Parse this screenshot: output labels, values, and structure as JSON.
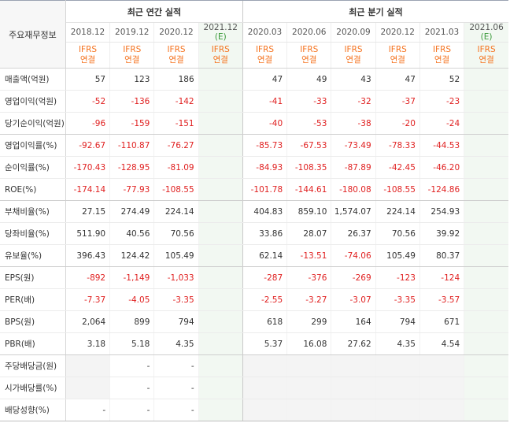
{
  "header": {
    "row_label": "주요재무정보",
    "annual_title": "최근 연간 실적",
    "quarterly_title": "최근 분기 실적",
    "estimate_mark": "(E)",
    "periods": [
      {
        "label": "2018.12",
        "est": false
      },
      {
        "label": "2019.12",
        "est": false
      },
      {
        "label": "2020.12",
        "est": false
      },
      {
        "label": "2021.12",
        "est": true
      },
      {
        "label": "2020.03",
        "est": false
      },
      {
        "label": "2020.06",
        "est": false
      },
      {
        "label": "2020.09",
        "est": false
      },
      {
        "label": "2020.12",
        "est": false
      },
      {
        "label": "2021.03",
        "est": false
      },
      {
        "label": "2021.06",
        "est": true
      }
    ],
    "basis_line1": "IFRS",
    "basis_line2": "연결"
  },
  "rows": [
    {
      "label": "매출액(억원)",
      "values": [
        "57",
        "123",
        "186",
        "",
        "47",
        "49",
        "43",
        "47",
        "52",
        ""
      ]
    },
    {
      "label": "영업이익(억원)",
      "values": [
        "-52",
        "-136",
        "-142",
        "",
        "-41",
        "-33",
        "-32",
        "-37",
        "-23",
        ""
      ]
    },
    {
      "label": "당기순이익(억원)",
      "values": [
        "-96",
        "-159",
        "-151",
        "",
        "-40",
        "-53",
        "-38",
        "-20",
        "-24",
        ""
      ]
    },
    {
      "label": "영업이익률(%)",
      "values": [
        "-92.67",
        "-110.87",
        "-76.27",
        "",
        "-85.73",
        "-67.53",
        "-73.49",
        "-78.33",
        "-44.53",
        ""
      ]
    },
    {
      "label": "순이익률(%)",
      "values": [
        "-170.43",
        "-128.95",
        "-81.09",
        "",
        "-84.93",
        "-108.35",
        "-87.89",
        "-42.45",
        "-46.20",
        ""
      ]
    },
    {
      "label": "ROE(%)",
      "values": [
        "-174.14",
        "-77.93",
        "-108.55",
        "",
        "-101.78",
        "-144.61",
        "-180.08",
        "-108.55",
        "-124.86",
        ""
      ]
    },
    {
      "label": "부채비율(%)",
      "values": [
        "27.15",
        "274.49",
        "224.14",
        "",
        "404.83",
        "859.10",
        "1,574.07",
        "224.14",
        "254.93",
        ""
      ]
    },
    {
      "label": "당좌비율(%)",
      "values": [
        "511.90",
        "40.56",
        "70.56",
        "",
        "33.86",
        "28.07",
        "26.37",
        "70.56",
        "39.92",
        ""
      ]
    },
    {
      "label": "유보율(%)",
      "values": [
        "396.43",
        "124.42",
        "105.49",
        "",
        "62.14",
        "-13.51",
        "-74.06",
        "105.49",
        "80.37",
        ""
      ]
    },
    {
      "label": "EPS(원)",
      "values": [
        "-892",
        "-1,149",
        "-1,033",
        "",
        "-287",
        "-376",
        "-269",
        "-123",
        "-124",
        ""
      ]
    },
    {
      "label": "PER(배)",
      "values": [
        "-7.37",
        "-4.05",
        "-3.35",
        "",
        "-2.55",
        "-3.27",
        "-3.07",
        "-3.35",
        "-3.57",
        ""
      ]
    },
    {
      "label": "BPS(원)",
      "values": [
        "2,064",
        "899",
        "794",
        "",
        "618",
        "299",
        "164",
        "794",
        "671",
        ""
      ]
    },
    {
      "label": "PBR(배)",
      "values": [
        "3.18",
        "5.18",
        "4.35",
        "",
        "5.37",
        "16.08",
        "27.62",
        "4.35",
        "4.54",
        ""
      ]
    },
    {
      "label": "주당배당금(원)",
      "values": [
        "",
        "-",
        "-",
        "",
        "",
        "",
        "",
        "",
        "",
        ""
      ]
    },
    {
      "label": "시가배당률(%)",
      "values": [
        "",
        "-",
        "-",
        "",
        "",
        "",
        "",
        "",
        "",
        ""
      ]
    },
    {
      "label": "배당성향(%)",
      "values": [
        "-",
        "-",
        "-",
        "",
        "",
        "",
        "",
        "",
        "",
        ""
      ]
    }
  ],
  "colors": {
    "negative": "#e02020",
    "ifrs": "#f5731f",
    "estimate_bg": "#f2f8f2",
    "estimate_mark": "#3a9a3a"
  }
}
